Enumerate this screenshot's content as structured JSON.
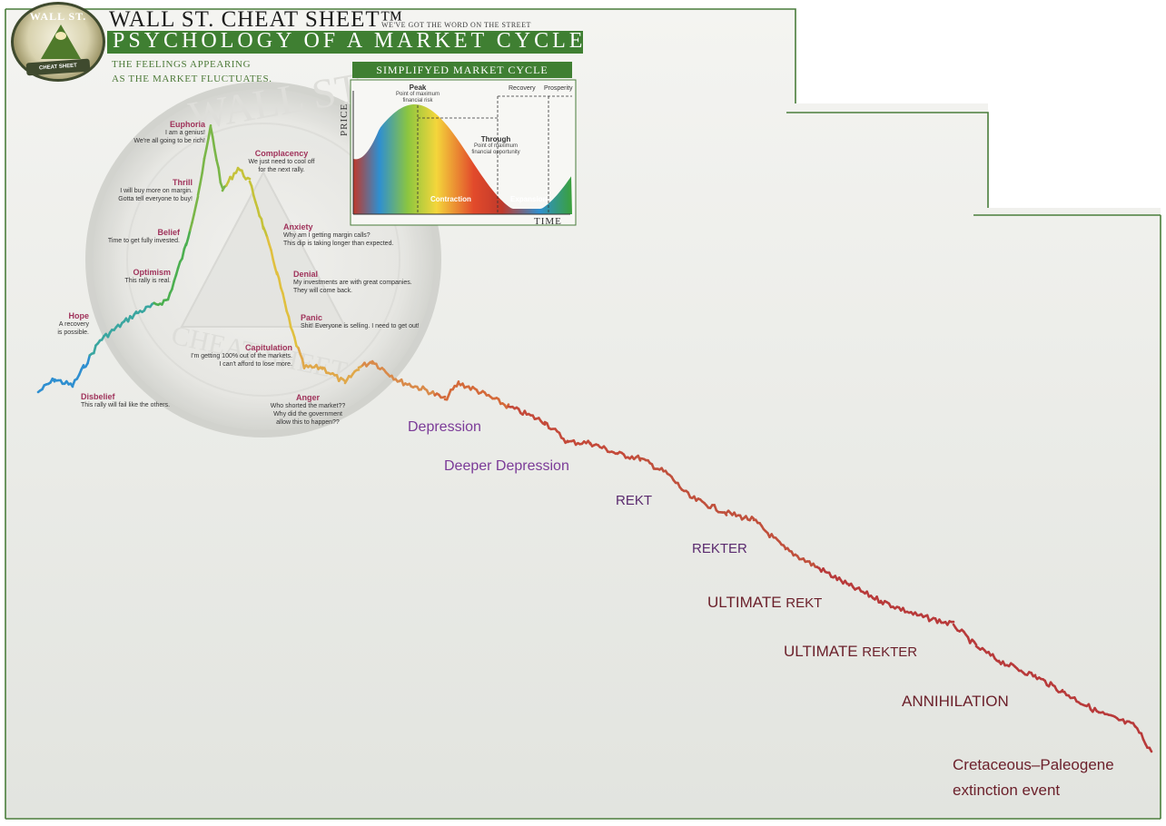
{
  "header": {
    "logo_text": "WALL ST.",
    "logo_band": "CHEAT SHEET",
    "title": "WALL ST. CHEAT SHEET™",
    "tagline": "WE'VE GOT THE WORD ON THE STREET",
    "subtitle": "PSYCHOLOGY OF A MARKET CYCLE",
    "caption_line1": "THE FEELINGS APPEARING",
    "caption_line2": "AS THE MARKET FLUCTUATES."
  },
  "inset": {
    "title": "SIMPLIFYED MARKET CYCLE",
    "ylabel": "PRICE",
    "xlabel": "TIME",
    "peak": "Peak",
    "peak_note1": "Point of maximum",
    "peak_note2": "financial risk",
    "through": "Through",
    "through_note1": "Point of maximum",
    "through_note2": "financial opportunity",
    "recovery": "Recovery",
    "prosperity": "Prosperity",
    "contraction": "Contraction",
    "expansion": "Expansion"
  },
  "emotions": [
    {
      "name": "Euphoria",
      "text1": "I am a genius!",
      "text2": "We're all going to be rich!"
    },
    {
      "name": "Thrill",
      "text1": "I will buy more on margin.",
      "text2": "Gotta tell everyone to buy!"
    },
    {
      "name": "Belief",
      "text1": "Time to get fully invested.",
      "text2": ""
    },
    {
      "name": "Optimism",
      "text1": "This rally is real.",
      "text2": ""
    },
    {
      "name": "Hope",
      "text1": "A recovery",
      "text2": "is possible."
    },
    {
      "name": "Disbelief",
      "text1": "This rally will fail like the others.",
      "text2": ""
    },
    {
      "name": "Complacency",
      "text1": "We just need to cool off",
      "text2": "for the next rally."
    },
    {
      "name": "Anxiety",
      "text1": "Why am I getting margin calls?",
      "text2": "This dip is taking longer than expected."
    },
    {
      "name": "Denial",
      "text1": "My investments are with great companies.",
      "text2": "They will come back."
    },
    {
      "name": "Panic",
      "text1": "Shit! Everyone is selling. I need to get out!",
      "text2": ""
    },
    {
      "name": "Capitulation",
      "text1": "I'm getting 100% out of the markets.",
      "text2": "I can't afford to lose more."
    },
    {
      "name": "Anger",
      "text1": "Who shorted the market??",
      "text2": "Why did the government",
      "text3": "allow this to happen??"
    }
  ],
  "extension_labels": {
    "depression": "Depression",
    "deeper_depression": "Deeper Depression",
    "rekt": "REKT",
    "rekter": "REKTER",
    "ultimate1": "ULTIMATE",
    "ultimate1_suffix": "REKT",
    "ultimate2": "ULTIMATE",
    "ultimate2_suffix": "REKTER",
    "annihilation": "ANNIHILATION",
    "kpg_line1": "Cretaceous–Paleogene",
    "kpg_line2": "extinction event"
  },
  "colors": {
    "frame": "#4a7d3b",
    "band_green": "#3f7f32",
    "emotion_name": "#a0335b",
    "depression_purple": "#7b3b98",
    "rekt_dark": "#6b1f2a"
  }
}
